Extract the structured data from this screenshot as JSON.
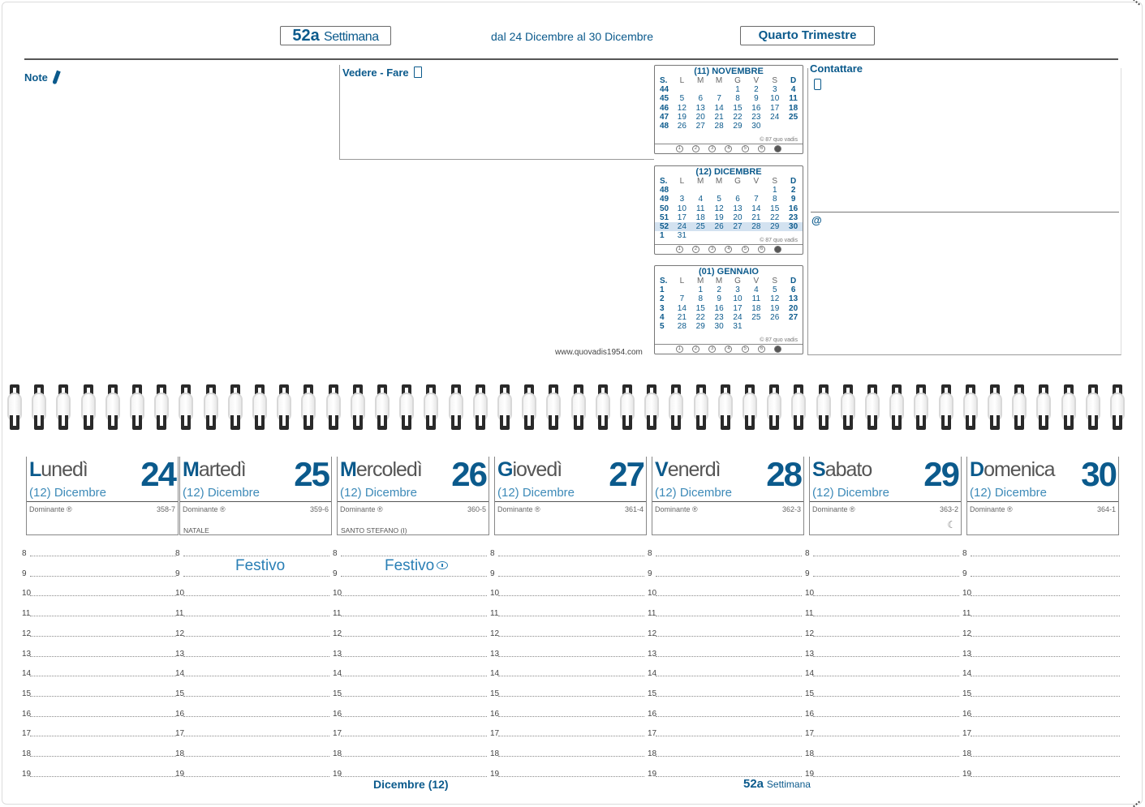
{
  "header": {
    "week_number": "52a",
    "week_label": "Settimana",
    "range": "dal 24 Dicembre al 30 Dicembre",
    "quarter": "Quarto Trimestre"
  },
  "sections": {
    "note": "Note",
    "todo": "Vedere - Fare",
    "contact": "Contattare",
    "email_symbol": "@",
    "website": "www.quovadis1954.com"
  },
  "mini_calendars": [
    {
      "title": "(11) NOVEMBRE",
      "head": [
        "S.",
        "L",
        "M",
        "M",
        "G",
        "V",
        "S",
        "D"
      ],
      "rows": [
        [
          "44",
          "",
          "",
          "",
          "1",
          "2",
          "3",
          "4"
        ],
        [
          "45",
          "5",
          "6",
          "7",
          "8",
          "9",
          "10",
          "11"
        ],
        [
          "46",
          "12",
          "13",
          "14",
          "15",
          "16",
          "17",
          "18"
        ],
        [
          "47",
          "19",
          "20",
          "21",
          "22",
          "23",
          "24",
          "25"
        ],
        [
          "48",
          "26",
          "27",
          "28",
          "29",
          "30",
          "",
          ""
        ]
      ],
      "copyright": "© 87 quo vadis",
      "moons": [
        "1",
        "2",
        "3",
        "4",
        "5",
        "6",
        "7"
      ]
    },
    {
      "title": "(12) DICEMBRE",
      "head": [
        "S.",
        "L",
        "M",
        "M",
        "G",
        "V",
        "S",
        "D"
      ],
      "rows": [
        [
          "48",
          "",
          "",
          "",
          "",
          "",
          "1",
          "2"
        ],
        [
          "49",
          "3",
          "4",
          "5",
          "6",
          "7",
          "8",
          "9"
        ],
        [
          "50",
          "10",
          "11",
          "12",
          "13",
          "14",
          "15",
          "16"
        ],
        [
          "51",
          "17",
          "18",
          "19",
          "20",
          "21",
          "22",
          "23"
        ],
        [
          "52",
          "24",
          "25",
          "26",
          "27",
          "28",
          "29",
          "30"
        ],
        [
          "1",
          "31",
          "",
          "",
          "",
          "",
          "",
          ""
        ]
      ],
      "highlight_row": 4,
      "copyright": "© 87 quo vadis",
      "moons": [
        "1",
        "2",
        "3",
        "4",
        "5",
        "6",
        "7"
      ]
    },
    {
      "title": "(01) GENNAIO",
      "head": [
        "S.",
        "L",
        "M",
        "M",
        "G",
        "V",
        "S",
        "D"
      ],
      "rows": [
        [
          "1",
          "",
          "1",
          "2",
          "3",
          "4",
          "5",
          "6"
        ],
        [
          "2",
          "7",
          "8",
          "9",
          "10",
          "11",
          "12",
          "13"
        ],
        [
          "3",
          "14",
          "15",
          "16",
          "17",
          "18",
          "19",
          "20"
        ],
        [
          "4",
          "21",
          "22",
          "23",
          "24",
          "25",
          "26",
          "27"
        ],
        [
          "5",
          "28",
          "29",
          "30",
          "31",
          "",
          "",
          ""
        ]
      ],
      "copyright": "© 87 quo vadis",
      "moons": [
        "1",
        "2",
        "3",
        "4",
        "5",
        "6",
        "7"
      ]
    }
  ],
  "days": [
    {
      "name": "Lunedì",
      "num": "24",
      "month": "(12) Dicembre",
      "dominante": "Dominante ®",
      "count": "358-7",
      "feast": ""
    },
    {
      "name": "Martedì",
      "num": "25",
      "month": "(12) Dicembre",
      "dominante": "Dominante ®",
      "count": "359-6",
      "feast": "NATALE"
    },
    {
      "name": "Mercoledì",
      "num": "26",
      "month": "(12) Dicembre",
      "dominante": "Dominante ®",
      "count": "360-5",
      "feast": "SANTO STEFANO (I)"
    },
    {
      "name": "Giovedì",
      "num": "27",
      "month": "(12) Dicembre",
      "dominante": "Dominante ®",
      "count": "361-4",
      "feast": ""
    },
    {
      "name": "Venerdì",
      "num": "28",
      "month": "(12) Dicembre",
      "dominante": "Dominante ®",
      "count": "362-3",
      "feast": ""
    },
    {
      "name": "Sabato",
      "num": "29",
      "month": "(12) Dicembre",
      "dominante": "Dominante ®",
      "count": "363-2",
      "feast": "",
      "moon": "☾"
    },
    {
      "name": "Domenica",
      "num": "30",
      "month": "(12) Dicembre",
      "dominante": "Dominante ®",
      "count": "364-1",
      "feast": ""
    }
  ],
  "hours": [
    "8",
    "9",
    "10",
    "11",
    "12",
    "13",
    "14",
    "15",
    "16",
    "17",
    "18",
    "19"
  ],
  "festivo": [
    "Festivo",
    "Festivo"
  ],
  "footer": {
    "month": "Dicembre (12)",
    "week_number": "52a",
    "week_label": "Settimana"
  },
  "colors": {
    "accent": "#0b5a8c",
    "light_accent": "#2a7fb5",
    "highlight": "#d3e2f0"
  }
}
